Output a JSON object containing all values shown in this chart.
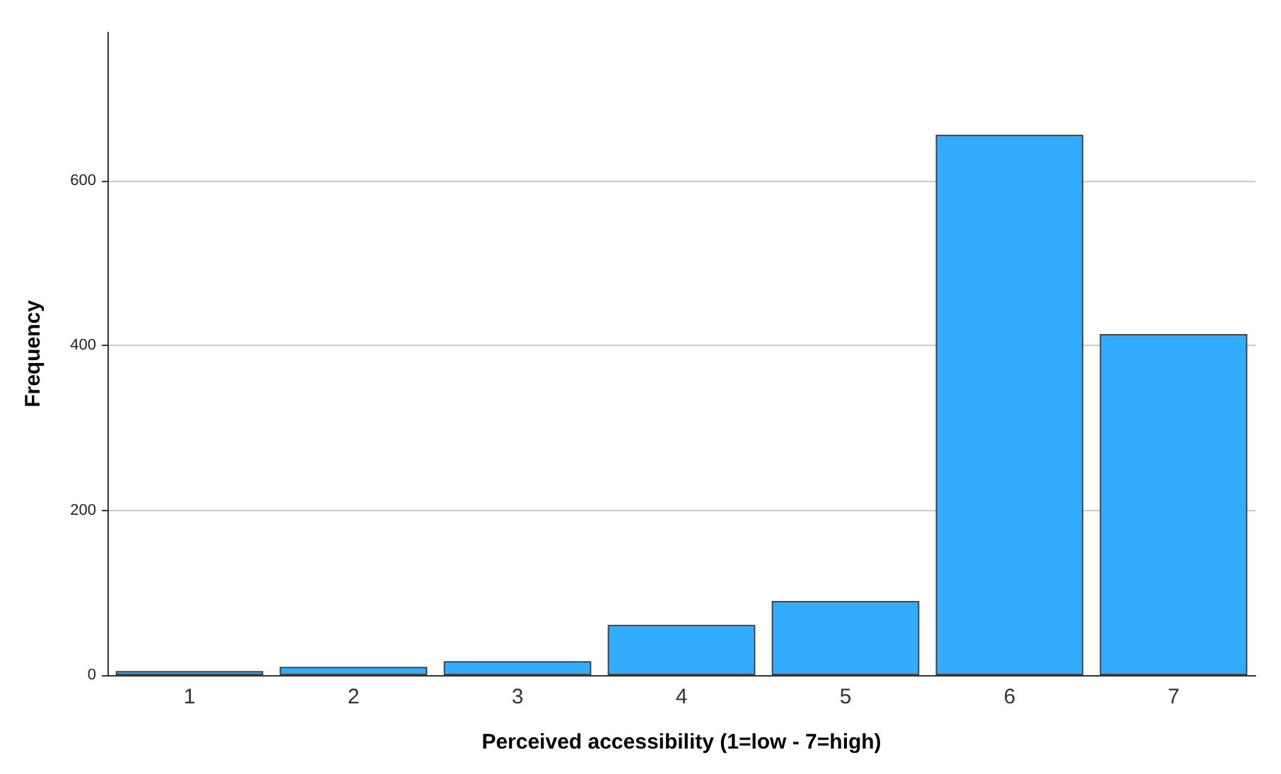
{
  "chart_data": {
    "type": "bar",
    "xlabel": "Perceived accessibility (1=low - 7=high)",
    "ylabel": "Frequency",
    "categories": [
      "1",
      "2",
      "3",
      "4",
      "5",
      "6",
      "7"
    ],
    "values": [
      5,
      10,
      17,
      61,
      90,
      656,
      414
    ],
    "color": "#33adff",
    "ylim": [
      0,
      780
    ],
    "yticks": [
      0,
      200,
      400,
      600
    ],
    "grid": "y"
  }
}
